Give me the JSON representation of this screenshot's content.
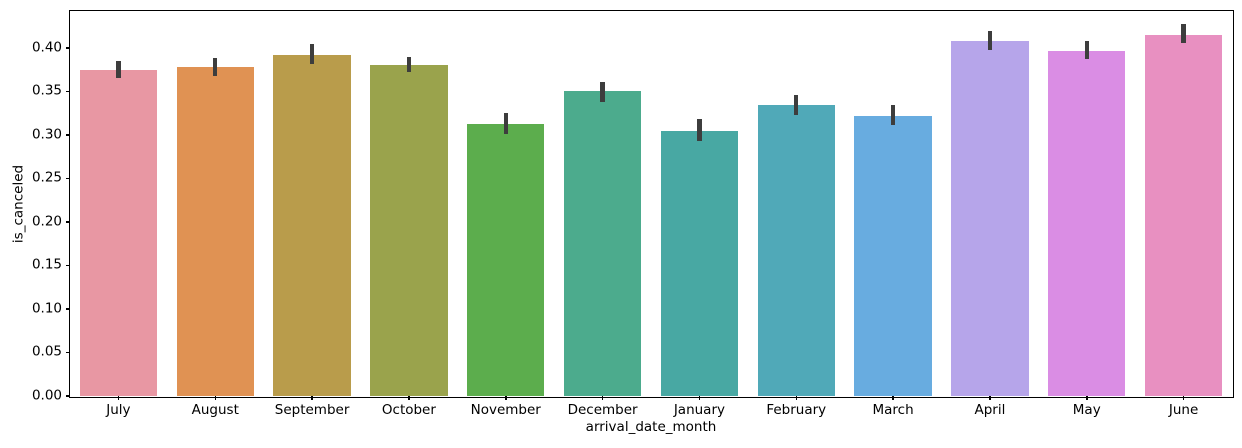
{
  "chart_data": {
    "type": "bar",
    "title": "",
    "xlabel": "arrival_date_month",
    "ylabel": "is_canceled",
    "categories": [
      "July",
      "August",
      "September",
      "October",
      "November",
      "December",
      "January",
      "February",
      "March",
      "April",
      "May",
      "June"
    ],
    "values": [
      0.375,
      0.378,
      0.392,
      0.381,
      0.313,
      0.35,
      0.305,
      0.334,
      0.322,
      0.408,
      0.397,
      0.415
    ],
    "ci_low": [
      0.365,
      0.368,
      0.382,
      0.372,
      0.301,
      0.338,
      0.293,
      0.323,
      0.311,
      0.398,
      0.387,
      0.406
    ],
    "ci_high": [
      0.385,
      0.388,
      0.404,
      0.39,
      0.325,
      0.361,
      0.318,
      0.346,
      0.334,
      0.42,
      0.408,
      0.428
    ],
    "bar_colors": [
      "#e897a3",
      "#e09253",
      "#b99c4b",
      "#9aa34c",
      "#5cad4d",
      "#4cab8d",
      "#48a8a3",
      "#50a9b8",
      "#68ace0",
      "#b6a5ea",
      "#da8de4",
      "#e890c1"
    ],
    "errorbar_color": "#3d3d3d",
    "spine_color": "#000000",
    "yticks": [
      0.0,
      0.05,
      0.1,
      0.15,
      0.2,
      0.25,
      0.3,
      0.35,
      0.4
    ],
    "ytick_labels": [
      "0.00",
      "0.05",
      "0.10",
      "0.15",
      "0.20",
      "0.25",
      "0.30",
      "0.35",
      "0.40"
    ],
    "ylim": [
      0,
      0.4425
    ],
    "grid": false,
    "legend": null
  }
}
